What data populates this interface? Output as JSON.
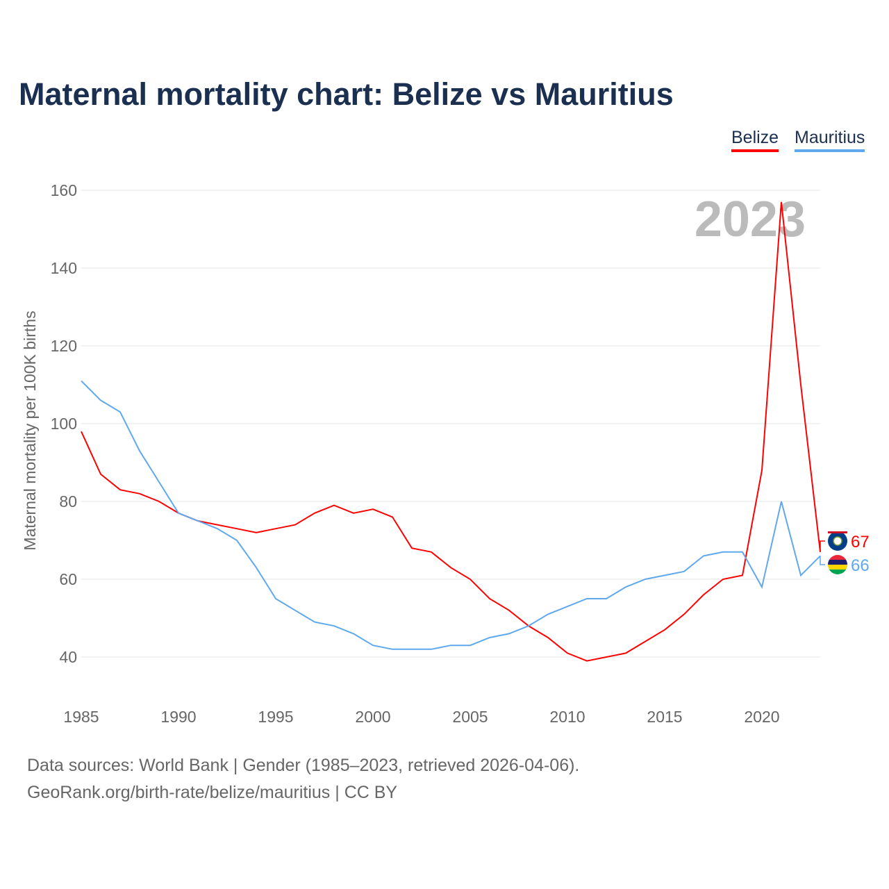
{
  "chart_data": {
    "type": "line",
    "title": "Maternal mortality chart: Belize vs Mauritius",
    "ylabel": "Maternal mortality per 100K births",
    "xlabel": "",
    "ylim": [
      30,
      165
    ],
    "xlim": [
      1985,
      2023
    ],
    "yticks": [
      40,
      60,
      80,
      100,
      120,
      140,
      160
    ],
    "xticks": [
      1985,
      1990,
      1995,
      2000,
      2005,
      2010,
      2015,
      2020
    ],
    "year_label": "2023",
    "legend_placement": "top-right",
    "x": [
      1985,
      1986,
      1987,
      1988,
      1989,
      1990,
      1991,
      1992,
      1993,
      1994,
      1995,
      1996,
      1997,
      1998,
      1999,
      2000,
      2001,
      2002,
      2003,
      2004,
      2005,
      2006,
      2007,
      2008,
      2009,
      2010,
      2011,
      2012,
      2013,
      2014,
      2015,
      2016,
      2017,
      2018,
      2019,
      2020,
      2021,
      2022,
      2023
    ],
    "series": [
      {
        "name": "Belize",
        "color": "#ff0000",
        "end_label": "67",
        "values": [
          98,
          87,
          83,
          82,
          80,
          77,
          75,
          74,
          73,
          72,
          73,
          74,
          77,
          79,
          77,
          78,
          76,
          68,
          67,
          63,
          60,
          55,
          52,
          48,
          45,
          41,
          39,
          40,
          41,
          44,
          47,
          51,
          56,
          60,
          61,
          88,
          157,
          110,
          67
        ]
      },
      {
        "name": "Mauritius",
        "color": "#5fa8ee",
        "end_label": "66",
        "values": [
          111,
          106,
          103,
          93,
          85,
          77,
          75,
          73,
          70,
          63,
          55,
          52,
          49,
          48,
          46,
          43,
          42,
          42,
          42,
          43,
          43,
          45,
          46,
          48,
          51,
          53,
          55,
          55,
          58,
          60,
          61,
          62,
          66,
          67,
          67,
          58,
          80,
          61,
          66
        ]
      }
    ]
  },
  "footer": {
    "line1": "Data sources: World Bank | Gender (1985–2023, retrieved 2026-04-06).",
    "line2": "GeoRank.org/birth-rate/belize/mauritius | CC BY"
  }
}
